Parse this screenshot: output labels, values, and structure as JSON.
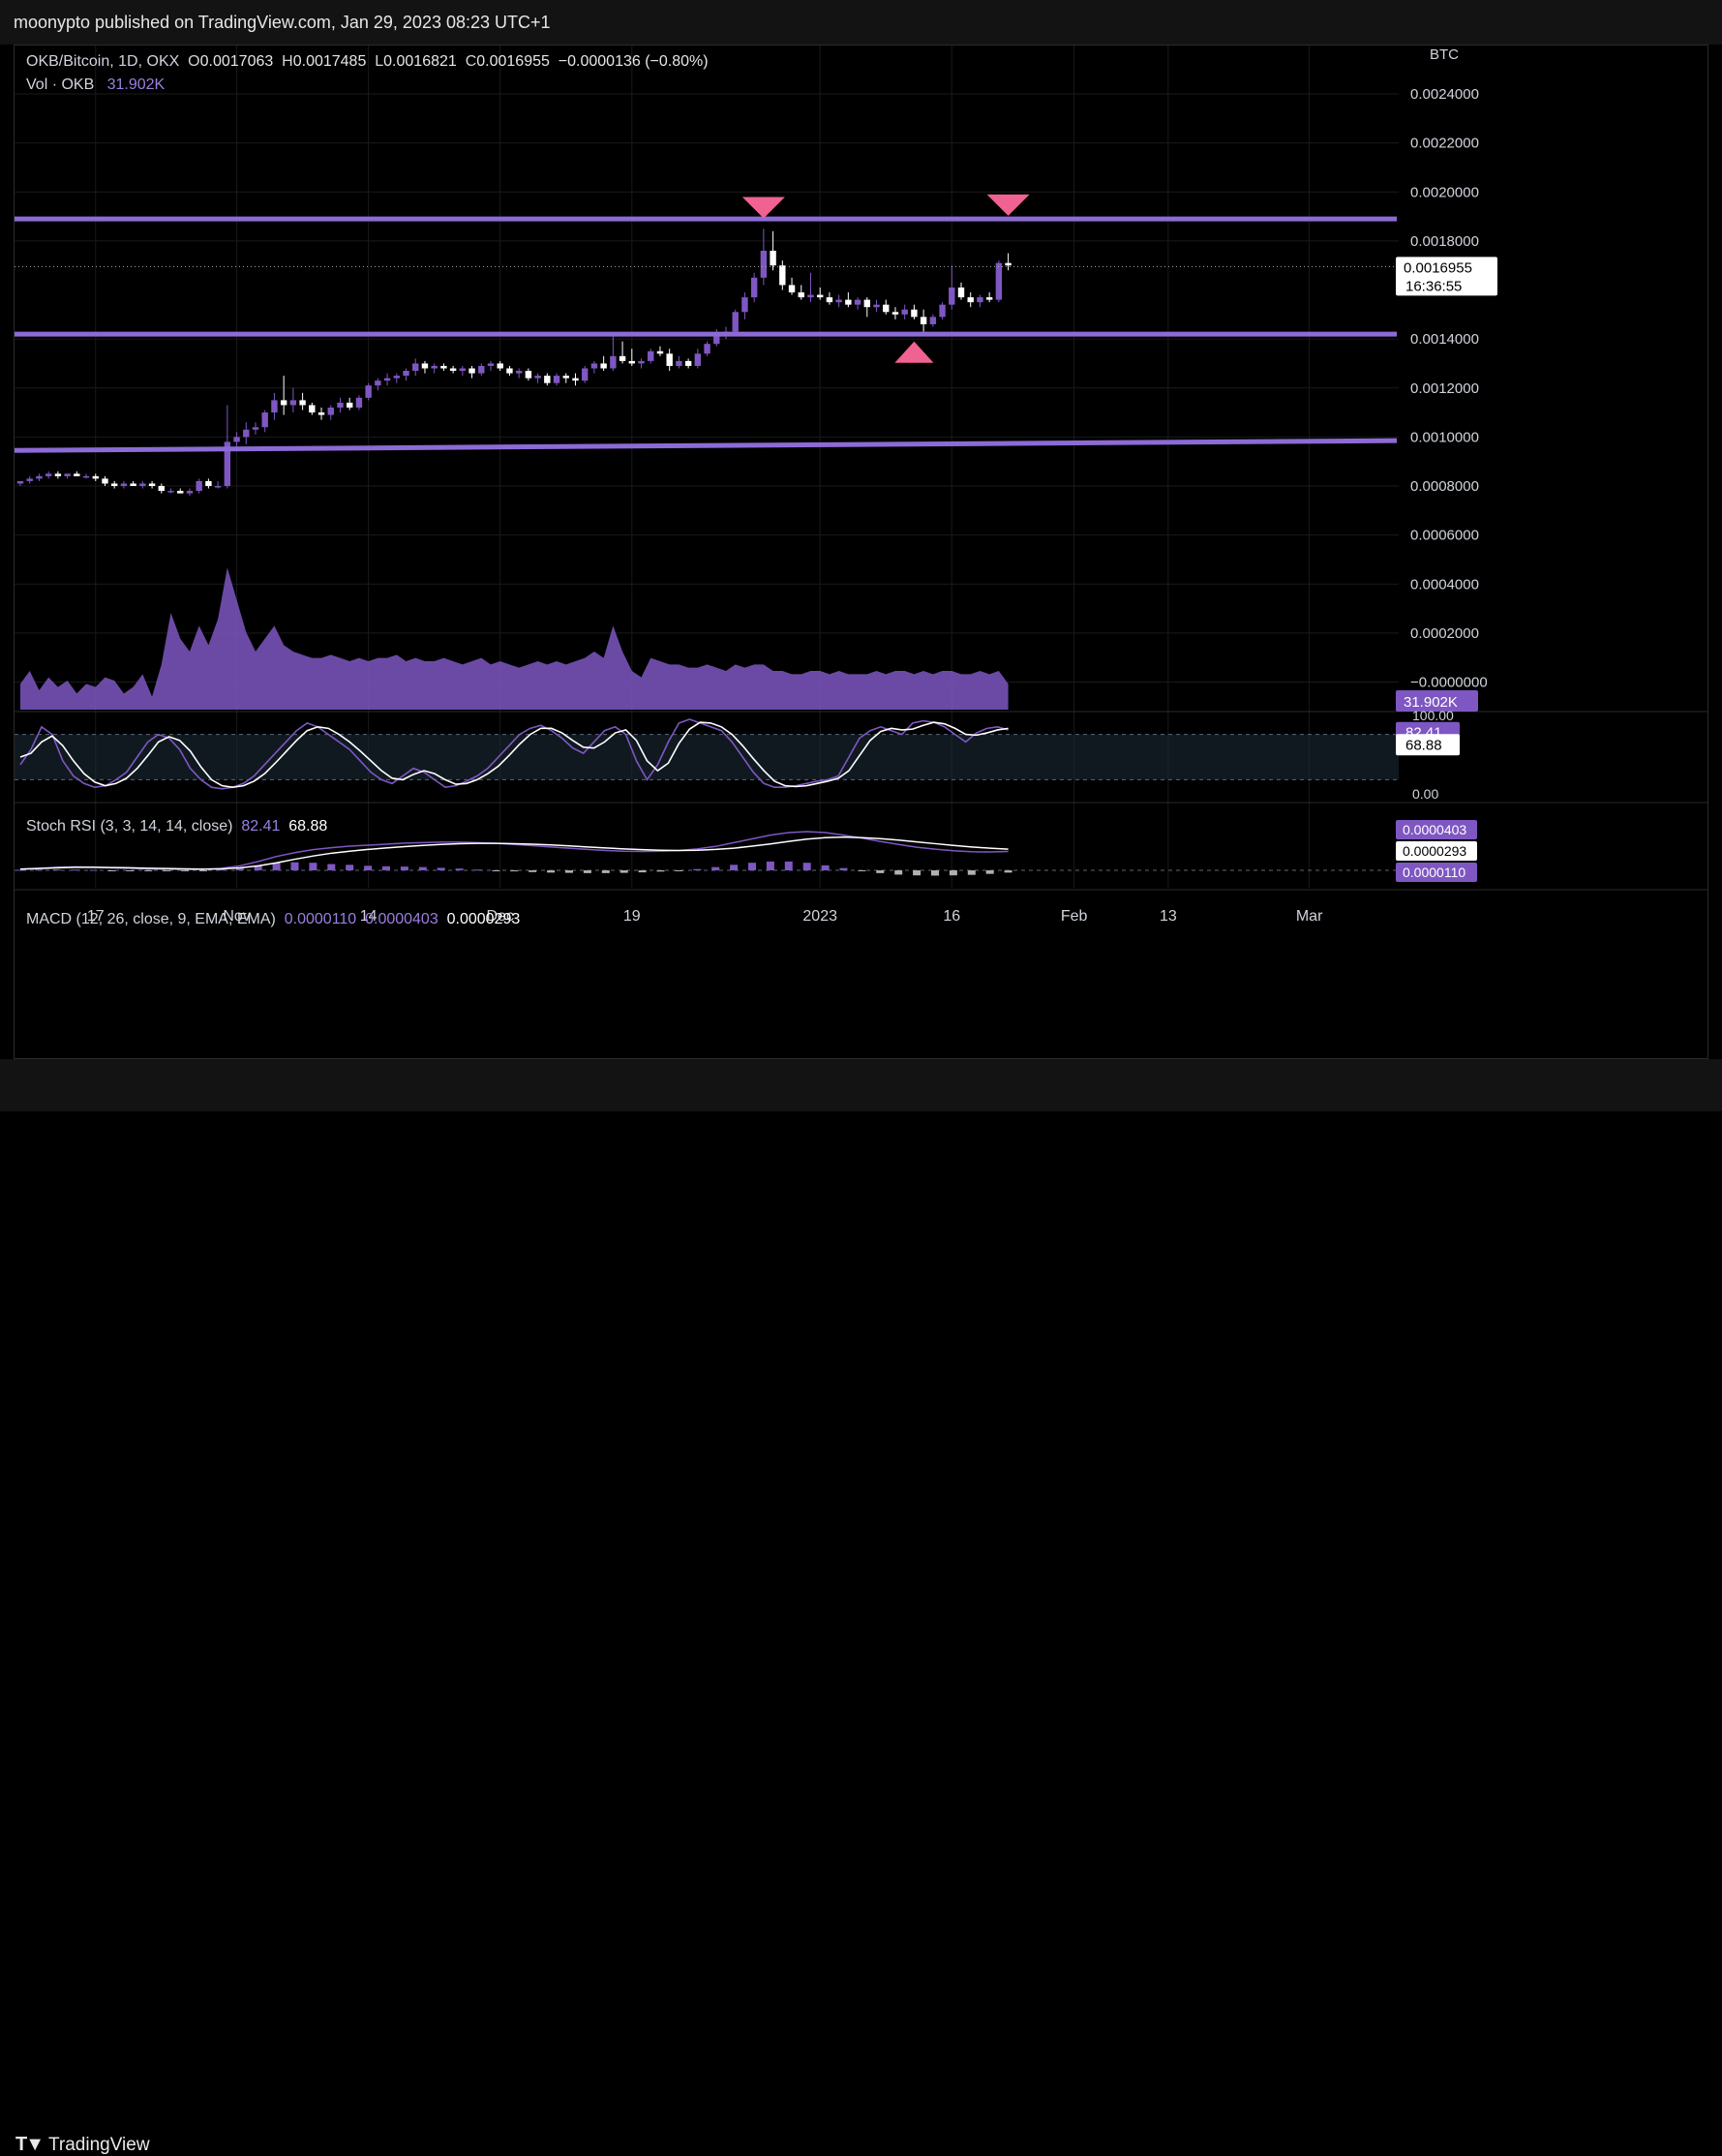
{
  "header": {
    "published": "moonypto published on TradingView.com, Jan 29, 2023 08:23 UTC+1"
  },
  "legend": {
    "symbol": "OKB/Bitcoin, 1D, OKX",
    "o_label": "O",
    "o_value": "0.0017063",
    "h_label": "H",
    "h_value": "0.0017485",
    "l_label": "L",
    "l_value": "0.0016821",
    "c_label": "C",
    "c_value": "0.0016955",
    "change": "−0.0000136 (−0.80%)",
    "vol_label": "Vol · OKB",
    "vol_value": "31.902K"
  },
  "stoch": {
    "label": "Stoch RSI (3, 3, 14, 14, close)",
    "k_value": "82.41",
    "d_value": "68.88",
    "axis": [
      "100.00",
      "0.00"
    ]
  },
  "macd": {
    "label": "MACD (12, 26, close, 9, EMA, EMA)",
    "hist_value": "0.0000110",
    "macd_value": "0.0000403",
    "signal_value": "0.0000293"
  },
  "price_axis": {
    "currency": "BTC",
    "ticks": [
      "0.0024000",
      "0.0022000",
      "0.0020000",
      "0.0018000",
      "0.0014000",
      "0.0012000",
      "0.0010000",
      "0.0008000",
      "0.0006000",
      "0.0004000",
      "0.0002000",
      "−0.0000000"
    ],
    "last_price": "0.0016955",
    "countdown": "16:36:55",
    "vol_badge": "31.902K"
  },
  "time_axis": [
    "17",
    "Nov",
    "14",
    "Dec",
    "19",
    "2023",
    "16",
    "Feb",
    "13",
    "Mar"
  ],
  "footer": {
    "brand": "TradingView"
  },
  "colors": {
    "up": "#7e57c2",
    "down": "#ffffff",
    "line": "#8c6bd6",
    "marker": "#f06292",
    "volume": "#7e57c2"
  },
  "chart_data": {
    "type": "candlestick",
    "title": "OKB/Bitcoin, 1D, OKX",
    "ylabel": "BTC",
    "ylim": [
      0.0,
      0.0025
    ],
    "x_start": "2022-10-09",
    "candles": [
      [
        0.00081,
        0.00082,
        0.0008,
        0.00082
      ],
      [
        0.00082,
        0.00084,
        0.00081,
        0.00083
      ],
      [
        0.00083,
        0.00085,
        0.00082,
        0.00084
      ],
      [
        0.00084,
        0.00086,
        0.00083,
        0.00085
      ],
      [
        0.00085,
        0.00086,
        0.00083,
        0.00084
      ],
      [
        0.00084,
        0.00085,
        0.00083,
        0.00085
      ],
      [
        0.00085,
        0.00086,
        0.00084,
        0.00084
      ],
      [
        0.00084,
        0.00085,
        0.00083,
        0.00084
      ],
      [
        0.00084,
        0.00085,
        0.00082,
        0.00083
      ],
      [
        0.00083,
        0.00084,
        0.0008,
        0.00081
      ],
      [
        0.00081,
        0.00082,
        0.00079,
        0.0008
      ],
      [
        0.0008,
        0.00082,
        0.00079,
        0.00081
      ],
      [
        0.00081,
        0.00082,
        0.0008,
        0.0008
      ],
      [
        0.0008,
        0.00082,
        0.00079,
        0.00081
      ],
      [
        0.00081,
        0.00082,
        0.00079,
        0.0008
      ],
      [
        0.0008,
        0.00081,
        0.00077,
        0.00078
      ],
      [
        0.00078,
        0.00079,
        0.00077,
        0.00078
      ],
      [
        0.00078,
        0.00079,
        0.00077,
        0.00077
      ],
      [
        0.00077,
        0.00079,
        0.00076,
        0.00078
      ],
      [
        0.00078,
        0.00083,
        0.00077,
        0.00082
      ],
      [
        0.00082,
        0.00083,
        0.00079,
        0.0008
      ],
      [
        0.0008,
        0.00082,
        0.00079,
        0.0008
      ],
      [
        0.0008,
        0.00113,
        0.00079,
        0.00098
      ],
      [
        0.00098,
        0.00102,
        0.00095,
        0.001
      ],
      [
        0.001,
        0.00106,
        0.00097,
        0.00103
      ],
      [
        0.00103,
        0.00106,
        0.00101,
        0.00104
      ],
      [
        0.00104,
        0.00111,
        0.00102,
        0.0011
      ],
      [
        0.0011,
        0.00118,
        0.00107,
        0.00115
      ],
      [
        0.00115,
        0.00125,
        0.00109,
        0.00113
      ],
      [
        0.00113,
        0.0012,
        0.0011,
        0.00115
      ],
      [
        0.00115,
        0.00118,
        0.00111,
        0.00113
      ],
      [
        0.00113,
        0.00114,
        0.00109,
        0.0011
      ],
      [
        0.0011,
        0.00112,
        0.00107,
        0.00109
      ],
      [
        0.00109,
        0.00113,
        0.00107,
        0.00112
      ],
      [
        0.00112,
        0.00116,
        0.0011,
        0.00114
      ],
      [
        0.00114,
        0.00116,
        0.00111,
        0.00112
      ],
      [
        0.00112,
        0.00117,
        0.00111,
        0.00116
      ],
      [
        0.00116,
        0.00122,
        0.00115,
        0.00121
      ],
      [
        0.00121,
        0.00124,
        0.00119,
        0.00123
      ],
      [
        0.00123,
        0.00126,
        0.00121,
        0.00124
      ],
      [
        0.00124,
        0.00126,
        0.00122,
        0.00125
      ],
      [
        0.00125,
        0.00128,
        0.00123,
        0.00127
      ],
      [
        0.00127,
        0.00132,
        0.00125,
        0.0013
      ],
      [
        0.0013,
        0.00131,
        0.00126,
        0.00128
      ],
      [
        0.00128,
        0.0013,
        0.00126,
        0.00129
      ],
      [
        0.00129,
        0.0013,
        0.00127,
        0.00128
      ],
      [
        0.00128,
        0.00129,
        0.00126,
        0.00127
      ],
      [
        0.00127,
        0.00129,
        0.00125,
        0.00128
      ],
      [
        0.00128,
        0.00129,
        0.00124,
        0.00126
      ],
      [
        0.00126,
        0.0013,
        0.00125,
        0.00129
      ],
      [
        0.00129,
        0.00131,
        0.00127,
        0.0013
      ],
      [
        0.0013,
        0.00131,
        0.00127,
        0.00128
      ],
      [
        0.00128,
        0.00129,
        0.00125,
        0.00126
      ],
      [
        0.00126,
        0.00128,
        0.00124,
        0.00127
      ],
      [
        0.00127,
        0.00128,
        0.00123,
        0.00124
      ],
      [
        0.00124,
        0.00126,
        0.00122,
        0.00125
      ],
      [
        0.00125,
        0.00126,
        0.00121,
        0.00122
      ],
      [
        0.00122,
        0.00126,
        0.00121,
        0.00125
      ],
      [
        0.00125,
        0.00126,
        0.00122,
        0.00124
      ],
      [
        0.00124,
        0.00126,
        0.00121,
        0.00123
      ],
      [
        0.00123,
        0.00129,
        0.00122,
        0.00128
      ],
      [
        0.00128,
        0.00131,
        0.00126,
        0.0013
      ],
      [
        0.0013,
        0.00133,
        0.00127,
        0.00128
      ],
      [
        0.00128,
        0.00142,
        0.00127,
        0.00133
      ],
      [
        0.00133,
        0.00139,
        0.0013,
        0.00131
      ],
      [
        0.00131,
        0.00136,
        0.00129,
        0.0013
      ],
      [
        0.0013,
        0.00132,
        0.00128,
        0.00131
      ],
      [
        0.00131,
        0.00136,
        0.0013,
        0.00135
      ],
      [
        0.00135,
        0.00137,
        0.00133,
        0.00134
      ],
      [
        0.00134,
        0.00136,
        0.00127,
        0.00129
      ],
      [
        0.00129,
        0.00133,
        0.00128,
        0.00131
      ],
      [
        0.00131,
        0.00132,
        0.00128,
        0.00129
      ],
      [
        0.00129,
        0.00136,
        0.00128,
        0.00134
      ],
      [
        0.00134,
        0.00139,
        0.00133,
        0.00138
      ],
      [
        0.00138,
        0.00144,
        0.00137,
        0.00142
      ],
      [
        0.00142,
        0.00145,
        0.0014,
        0.00143
      ],
      [
        0.00143,
        0.00152,
        0.00142,
        0.00151
      ],
      [
        0.00151,
        0.00159,
        0.00148,
        0.00157
      ],
      [
        0.00157,
        0.00167,
        0.00155,
        0.00165
      ],
      [
        0.00165,
        0.00185,
        0.00162,
        0.00176
      ],
      [
        0.00176,
        0.00184,
        0.00168,
        0.0017
      ],
      [
        0.0017,
        0.00172,
        0.0016,
        0.00162
      ],
      [
        0.00162,
        0.00165,
        0.00158,
        0.00159
      ],
      [
        0.00159,
        0.00162,
        0.00156,
        0.00157
      ],
      [
        0.00157,
        0.00167,
        0.00155,
        0.00158
      ],
      [
        0.00158,
        0.00161,
        0.00156,
        0.00157
      ],
      [
        0.00157,
        0.00159,
        0.00154,
        0.00155
      ],
      [
        0.00155,
        0.00158,
        0.00153,
        0.00156
      ],
      [
        0.00156,
        0.00159,
        0.00153,
        0.00154
      ],
      [
        0.00154,
        0.00157,
        0.00152,
        0.00156
      ],
      [
        0.00156,
        0.00157,
        0.00149,
        0.00153
      ],
      [
        0.00153,
        0.00156,
        0.00151,
        0.00154
      ],
      [
        0.00154,
        0.00156,
        0.0015,
        0.00151
      ],
      [
        0.00151,
        0.00153,
        0.00148,
        0.0015
      ],
      [
        0.0015,
        0.00154,
        0.00148,
        0.00152
      ],
      [
        0.00152,
        0.00154,
        0.00148,
        0.00149
      ],
      [
        0.00149,
        0.00152,
        0.00143,
        0.00146
      ],
      [
        0.00146,
        0.0015,
        0.00145,
        0.00149
      ],
      [
        0.00149,
        0.00155,
        0.00148,
        0.00154
      ],
      [
        0.00154,
        0.0017,
        0.00152,
        0.00161
      ],
      [
        0.00161,
        0.00163,
        0.00156,
        0.00157
      ],
      [
        0.00157,
        0.00159,
        0.00153,
        0.00155
      ],
      [
        0.00155,
        0.00158,
        0.00153,
        0.00157
      ],
      [
        0.00157,
        0.00159,
        0.00155,
        0.00156
      ],
      [
        0.00156,
        0.00172,
        0.00155,
        0.00171
      ],
      [
        0.00171,
        0.00175,
        0.00168,
        0.0017
      ]
    ],
    "volume": [
      8,
      12,
      6,
      10,
      7,
      9,
      5,
      8,
      7,
      10,
      9,
      5,
      7,
      11,
      4,
      14,
      30,
      22,
      18,
      26,
      20,
      28,
      44,
      34,
      24,
      18,
      22,
      26,
      20,
      18,
      17,
      16,
      16,
      17,
      16,
      15,
      16,
      15,
      16,
      16,
      17,
      15,
      16,
      15,
      15,
      16,
      15,
      14,
      15,
      16,
      14,
      15,
      14,
      13,
      14,
      15,
      14,
      15,
      14,
      15,
      16,
      18,
      16,
      26,
      18,
      12,
      10,
      16,
      15,
      14,
      14,
      13,
      13,
      14,
      13,
      12,
      14,
      13,
      14,
      14,
      12,
      12,
      11,
      11,
      12,
      12,
      11,
      12,
      11,
      11,
      11,
      12,
      11,
      12,
      12,
      11,
      12,
      11,
      12,
      12,
      11,
      11,
      12,
      11,
      12,
      8
    ],
    "volume_ylim": [
      0,
      60
    ],
    "horizontal_lines": [
      {
        "from": [
          0,
          0.00189
        ],
        "to": [
          109,
          0.00189
        ]
      },
      {
        "from": [
          0,
          0.00142
        ],
        "to": [
          109,
          0.00142
        ]
      },
      {
        "from": [
          0,
          0.000945
        ],
        "to": [
          109,
          0.000985
        ]
      }
    ],
    "markers": [
      {
        "type": "down",
        "index": 79,
        "price": 0.00194
      },
      {
        "type": "down",
        "index": 105,
        "price": 0.00195
      },
      {
        "type": "up",
        "index": 95,
        "price": 0.00135
      }
    ],
    "stoch_k": [
      40,
      60,
      90,
      80,
      45,
      25,
      15,
      10,
      12,
      20,
      30,
      50,
      70,
      80,
      75,
      60,
      35,
      20,
      10,
      8,
      10,
      15,
      25,
      40,
      55,
      70,
      85,
      95,
      90,
      80,
      70,
      60,
      45,
      30,
      20,
      15,
      25,
      35,
      30,
      20,
      10,
      12,
      18,
      25,
      35,
      50,
      65,
      80,
      88,
      92,
      85,
      75,
      62,
      55,
      70,
      85,
      90,
      80,
      45,
      20,
      40,
      70,
      95,
      100,
      95,
      90,
      85,
      70,
      50,
      30,
      15,
      10,
      10,
      12,
      15,
      18,
      20,
      25,
      50,
      75,
      85,
      90,
      85,
      80,
      95,
      98,
      96,
      90,
      80,
      70,
      82,
      88,
      90,
      86
    ],
    "stoch_d": [
      50,
      55,
      70,
      78,
      65,
      45,
      28,
      17,
      12,
      15,
      22,
      35,
      52,
      70,
      77,
      72,
      58,
      37,
      20,
      12,
      10,
      12,
      18,
      28,
      42,
      57,
      72,
      85,
      90,
      88,
      80,
      70,
      58,
      45,
      32,
      22,
      20,
      27,
      32,
      28,
      20,
      14,
      15,
      20,
      28,
      38,
      52,
      67,
      80,
      88,
      88,
      82,
      72,
      63,
      62,
      70,
      82,
      86,
      72,
      45,
      32,
      42,
      68,
      87,
      96,
      95,
      90,
      80,
      65,
      48,
      32,
      18,
      12,
      11,
      12,
      15,
      18,
      22,
      32,
      52,
      72,
      84,
      88,
      86,
      87,
      92,
      96,
      94,
      88,
      80,
      79,
      82,
      86,
      88
    ],
    "stoch_ylim": [
      0,
      100
    ],
    "macd_line": [
      0.5,
      0.8,
      1.2,
      1.4,
      1.3,
      1.0,
      0.8,
      0.6,
      0.5,
      0.4,
      0.4,
      0.8,
      1.8,
      3.5,
      5.5,
      7.0,
      8.2,
      9.0,
      9.6,
      10.0,
      10.4,
      10.8,
      11.0,
      11.2,
      11.2,
      11.0,
      10.7,
      10.3,
      9.8,
      9.3,
      8.8,
      8.3,
      7.9,
      7.6,
      7.5,
      7.6,
      7.9,
      8.5,
      9.5,
      11.0,
      12.5,
      14.0,
      15.0,
      15.4,
      15.0,
      14.0,
      12.8,
      11.5,
      10.3,
      9.2,
      8.4,
      7.8,
      7.4,
      7.3,
      7.5
    ],
    "macd_signal": [
      0.5,
      0.7,
      1.0,
      1.2,
      1.2,
      1.1,
      1.0,
      0.8,
      0.7,
      0.6,
      0.5,
      0.6,
      1.0,
      1.8,
      3.0,
      4.4,
      5.7,
      6.8,
      7.6,
      8.3,
      8.9,
      9.4,
      9.9,
      10.3,
      10.6,
      10.7,
      10.7,
      10.6,
      10.4,
      10.1,
      9.7,
      9.3,
      8.9,
      8.5,
      8.2,
      8.0,
      7.9,
      8.0,
      8.3,
      8.8,
      9.6,
      10.5,
      11.5,
      12.4,
      13.0,
      13.2,
      13.0,
      12.6,
      12.0,
      11.3,
      10.6,
      9.9,
      9.3,
      8.8,
      8.4
    ],
    "macd_hist": [
      0.2,
      0.3,
      0.4,
      0.3,
      0.2,
      -0.1,
      -0.3,
      -0.3,
      -0.3,
      -0.3,
      -0.2,
      0.3,
      1.0,
      2.0,
      3.0,
      3.2,
      3.0,
      2.5,
      2.2,
      1.8,
      1.6,
      1.5,
      1.3,
      1.0,
      0.7,
      0.3,
      -0.1,
      -0.4,
      -0.7,
      -0.9,
      -1.0,
      -1.1,
      -1.1,
      -1.0,
      -0.8,
      -0.5,
      -0.1,
      0.5,
      1.3,
      2.2,
      3.0,
      3.5,
      3.5,
      3.0,
      2.0,
      0.9,
      -0.2,
      -1.1,
      -1.7,
      -2.0,
      -2.1,
      -2.0,
      -1.8,
      -1.4,
      -0.9
    ]
  }
}
